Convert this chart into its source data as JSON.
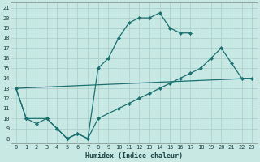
{
  "xlabel": "Humidex (Indice chaleur)",
  "bg_color": "#c8e8e4",
  "grid_color": "#a8ccc8",
  "line_color": "#1a7070",
  "xlim": [
    -0.5,
    23.5
  ],
  "ylim": [
    7.5,
    21.5
  ],
  "yticks": [
    8,
    9,
    10,
    11,
    12,
    13,
    14,
    15,
    16,
    17,
    18,
    19,
    20,
    21
  ],
  "xticks": [
    0,
    1,
    2,
    3,
    4,
    5,
    6,
    7,
    8,
    9,
    10,
    11,
    12,
    13,
    14,
    15,
    16,
    17,
    18,
    19,
    20,
    21,
    22,
    23
  ],
  "line1_x": [
    0,
    1,
    2,
    3,
    4,
    5,
    6,
    7,
    8,
    9,
    10,
    11,
    12,
    13,
    14,
    15,
    16,
    17
  ],
  "line1_y": [
    13,
    10,
    9.5,
    10,
    9,
    8,
    8.5,
    8,
    15,
    16,
    18,
    19.5,
    20,
    20,
    20.5,
    19,
    18.5,
    18.5
  ],
  "line2_x": [
    0,
    1,
    3,
    4,
    5,
    6,
    7,
    8,
    10,
    11,
    12,
    13,
    14,
    15,
    16,
    17,
    18,
    19,
    20,
    21,
    22,
    23
  ],
  "line2_y": [
    13,
    10,
    10,
    9,
    8,
    8.5,
    8,
    10,
    11,
    11.5,
    12,
    12.5,
    13,
    13.5,
    14,
    14.5,
    15,
    16,
    17,
    15.5,
    14,
    14
  ],
  "line3_x": [
    0,
    23
  ],
  "line3_y": [
    13,
    14
  ]
}
